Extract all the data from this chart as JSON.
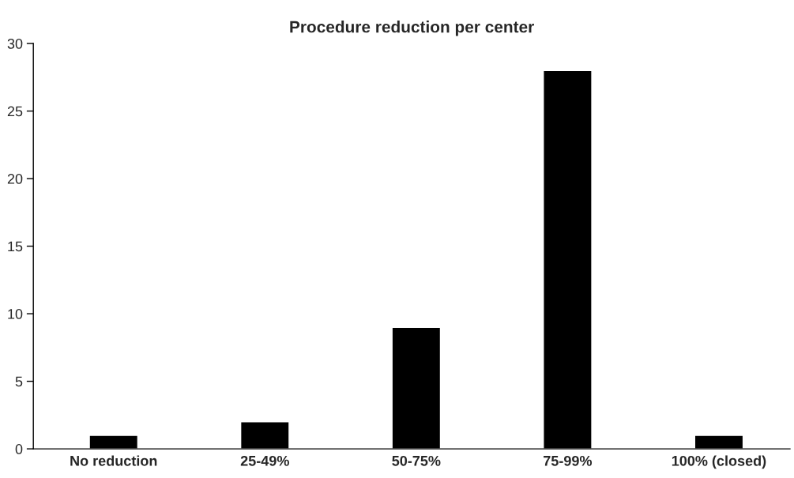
{
  "chart_data": {
    "type": "bar",
    "title": "Procedure reduction per center",
    "categories": [
      "No reduction",
      "25-49%",
      "50-75%",
      "75-99%",
      "100% (closed)"
    ],
    "values": [
      1,
      2,
      9,
      28,
      1
    ],
    "color": "#000000",
    "ylim": [
      0,
      30
    ],
    "yticks": [
      0,
      5,
      10,
      15,
      20,
      25,
      30
    ],
    "grid": false,
    "legend": false
  }
}
